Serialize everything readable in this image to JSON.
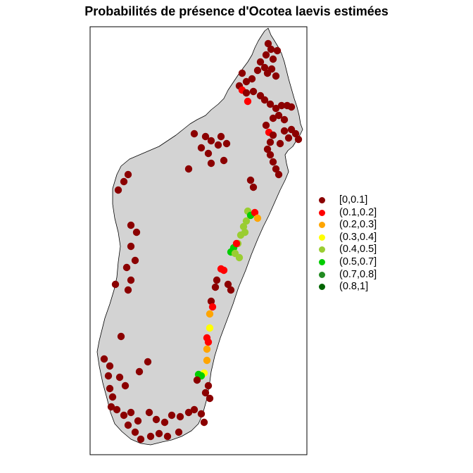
{
  "title": "Probabilités de présence d'Ocotea laevis estimées",
  "legend": [
    {
      "label": "[0,0.1]",
      "color": "#8b0000"
    },
    {
      "label": "(0.1,0.2]",
      "color": "#ff0000"
    },
    {
      "label": "(0.2,0.3]",
      "color": "#ffa500"
    },
    {
      "label": "(0.3,0.4]",
      "color": "#ffff00"
    },
    {
      "label": "(0.4,0.5]",
      "color": "#9acd32"
    },
    {
      "label": "(0.5,0.7]",
      "color": "#00cd00"
    },
    {
      "label": "(0.7,0.8]",
      "color": "#228b22"
    },
    {
      "label": "(0.8,1]",
      "color": "#006400"
    }
  ],
  "colors": {
    "land": "#d3d3d3",
    "coast": "#000000",
    "frame": "#000000"
  }
}
